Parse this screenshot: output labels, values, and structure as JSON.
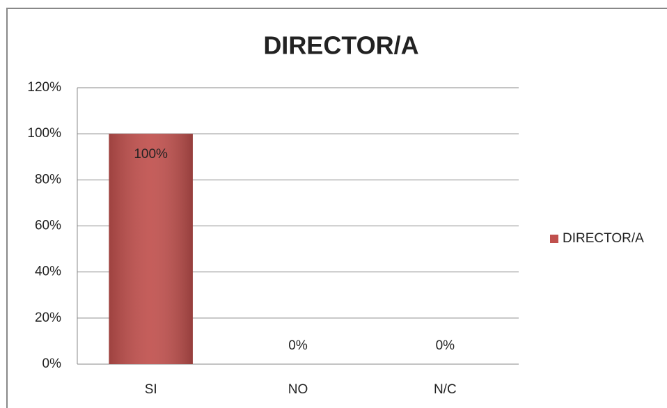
{
  "chart_data": {
    "type": "bar",
    "title": "DIRECTOR/A",
    "categories": [
      "SI",
      "NO",
      "N/C"
    ],
    "series": [
      {
        "name": "DIRECTOR/A",
        "color": "#c0504d",
        "values": [
          100,
          0,
          0
        ],
        "value_labels": [
          "100%",
          "0%",
          "0%"
        ]
      }
    ],
    "ylim": [
      0,
      120
    ],
    "yticks": [
      {
        "value": 0,
        "label": "0%"
      },
      {
        "value": 20,
        "label": "20%"
      },
      {
        "value": 40,
        "label": "40%"
      },
      {
        "value": 60,
        "label": "60%"
      },
      {
        "value": 80,
        "label": "80%"
      },
      {
        "value": 100,
        "label": "100%"
      },
      {
        "value": 120,
        "label": "120%"
      }
    ],
    "grid": true,
    "legend": "right"
  }
}
